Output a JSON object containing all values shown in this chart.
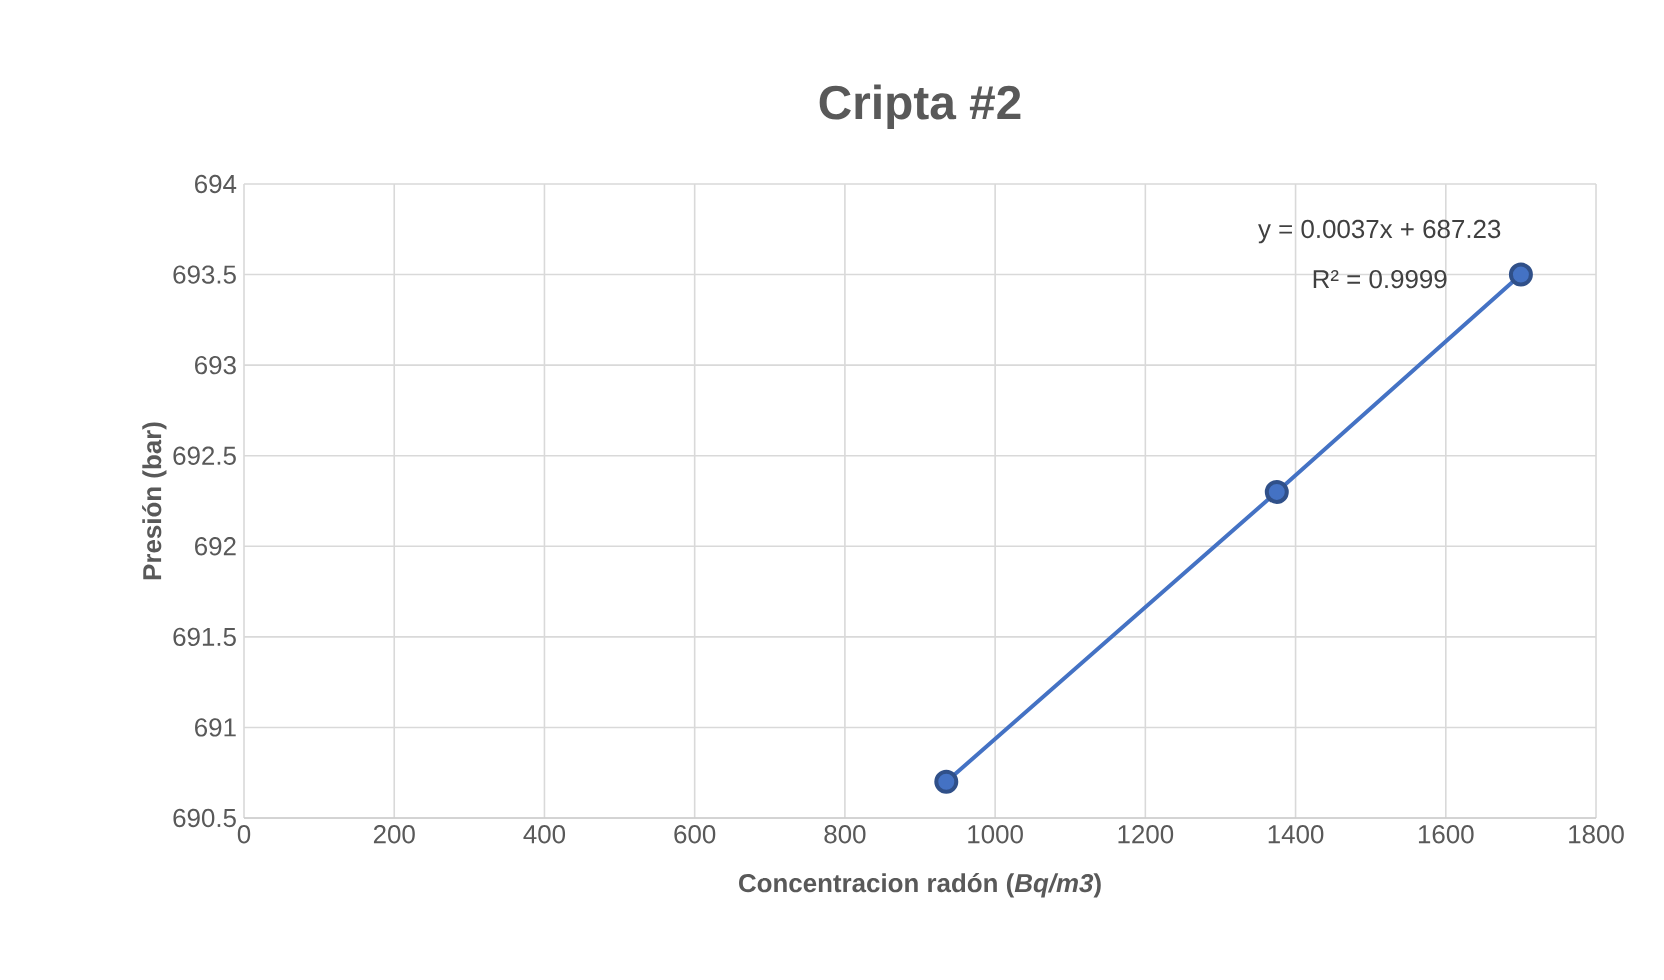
{
  "chart_data": {
    "type": "line",
    "title": "Cripta #2",
    "xlabel": "Concentracion radón (*Bq/m3*)",
    "ylabel": "Presión (bar)",
    "x": [
      935,
      1375,
      1700
    ],
    "series": [
      {
        "color": "#4472c4",
        "values": [
          690.7,
          692.3,
          693.5
        ]
      }
    ],
    "marker": "circle",
    "line_style": "solid",
    "xlim": [
      0,
      1800
    ],
    "xticks": [
      0,
      200,
      400,
      600,
      800,
      1000,
      1200,
      1400,
      1600,
      1800
    ],
    "ylim": [
      690.5,
      694
    ],
    "yticks": [
      690.5,
      691,
      691.5,
      692,
      692.5,
      693,
      693.5,
      694
    ],
    "grid": true,
    "annotations": [
      "y = 0.0037x + 687.23",
      "R² = 0.9999"
    ]
  }
}
